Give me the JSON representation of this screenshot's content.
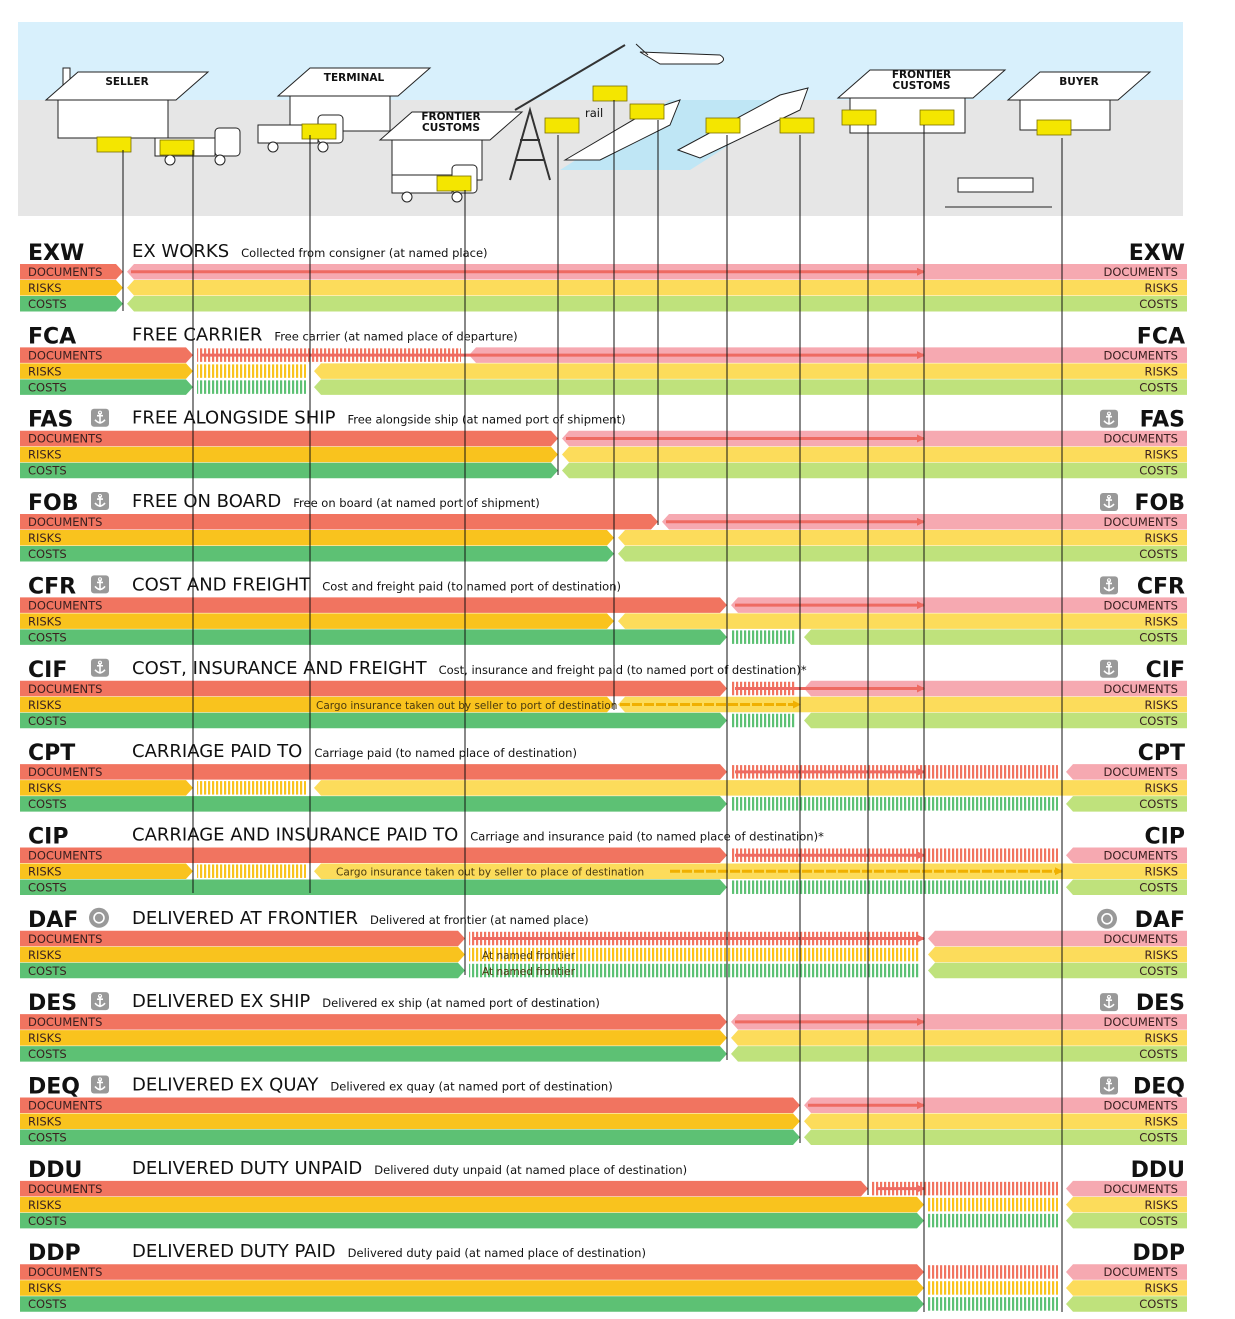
{
  "colors": {
    "sky": "#d8f0fc",
    "ground": "#e6e6e6",
    "cargo": "#f4e600",
    "seller": {
      "documents": "#f17460",
      "risks": "#f9c31e",
      "costs": "#5dc174"
    },
    "buyer": {
      "documents": "#f6a9b1",
      "risks": "#fcdc5b",
      "costs": "#bfe27c"
    },
    "docs_arrow": "#ee6a62",
    "insurance_arrow": "#f0b000"
  },
  "illustration": {
    "seller": "SELLER",
    "terminal": "TERMINAL",
    "frontier_customs_1": "FRONTIER",
    "frontier_customs_2": "CUSTOMS",
    "dest_customs_1": "FRONTIER",
    "dest_customs_2": "CUSTOMS",
    "buyer": "BUYER",
    "rail": "rail"
  },
  "lane_labels": {
    "documents": "DOCUMENTS",
    "risks": "RISKS",
    "costs": "COSTS"
  },
  "rows": [
    {
      "code": "EXW",
      "name": "EX WORKS",
      "desc": "Collected from consigner (at named place)",
      "icon": null,
      "documents": {
        "s": "seller",
        "arrow": "dest_customs"
      },
      "risks": {
        "s": "seller"
      },
      "costs": {
        "s": "seller"
      }
    },
    {
      "code": "FCA",
      "name": "FREE CARRIER",
      "desc": "Free carrier (at named place of departure)",
      "icon": null,
      "documents": {
        "s": "carrier",
        "h": "frontier",
        "arrow": "dest_customs"
      },
      "risks": {
        "s": "carrier",
        "h": "terminal"
      },
      "costs": {
        "s": "carrier",
        "h": "terminal"
      }
    },
    {
      "code": "FAS",
      "name": "FREE ALONGSIDE SHIP",
      "desc": "Free alongside ship (at named port of shipment)",
      "icon": "anchor-icon",
      "documents": {
        "s": "ship_side",
        "arrow": "dest_customs"
      },
      "risks": {
        "s": "ship_side"
      },
      "costs": {
        "s": "ship_side"
      }
    },
    {
      "code": "FOB",
      "name": "FREE ON BOARD",
      "desc": "Free on board (at named port of shipment)",
      "icon": "anchor-icon",
      "documents": {
        "s": "on_board",
        "arrow": "dest_customs"
      },
      "risks": {
        "s": "rail"
      },
      "costs": {
        "s": "rail"
      }
    },
    {
      "code": "CFR",
      "name": "COST AND FREIGHT",
      "desc": "Cost and freight paid (to named port of destination)",
      "icon": "anchor-icon",
      "documents": {
        "s": "dest_port",
        "arrow": "dest_customs"
      },
      "risks": {
        "s": "rail"
      },
      "costs": {
        "s": "dest_port",
        "h": "quay"
      }
    },
    {
      "code": "CIF",
      "name": "COST, INSURANCE AND FREIGHT",
      "desc": "Cost, insurance and freight paid (to named port of destination)*",
      "icon": "anchor-icon",
      "documents": {
        "s": "dest_port",
        "h": "quay",
        "arrow": "dest_customs"
      },
      "risks": {
        "s": "rail",
        "insurance": {
          "to": "quay",
          "text": "Cargo insurance taken out by seller to port of destination"
        }
      },
      "costs": {
        "s": "dest_port",
        "h": "quay"
      }
    },
    {
      "code": "CPT",
      "name": "CARRIAGE PAID TO",
      "desc": "Carriage paid  (to named place of destination)",
      "icon": null,
      "documents": {
        "s": "dest_port",
        "h": "buyer",
        "arrow": "dest_customs"
      },
      "risks": {
        "s": "carrier",
        "h": "terminal"
      },
      "costs": {
        "s": "dest_port",
        "h": "buyer"
      }
    },
    {
      "code": "CIP",
      "name": "CARRIAGE AND INSURANCE PAID TO",
      "desc": "Carriage and insurance paid (to named place of destination)*",
      "icon": null,
      "documents": {
        "s": "dest_port",
        "h": "buyer",
        "arrow": "dest_customs"
      },
      "risks": {
        "s": "carrier",
        "h": "terminal",
        "insurance": {
          "to": "buyer",
          "text": "Cargo insurance taken out by seller to place of destination"
        }
      },
      "costs": {
        "s": "dest_port",
        "h": "buyer"
      }
    },
    {
      "code": "DAF",
      "name": "DELIVERED AT FRONTIER",
      "desc": "Delivered at frontier (at named place)",
      "icon": "customs-badge-icon",
      "documents": {
        "s": "frontier",
        "h": "dest_customs",
        "arrow": "dest_customs"
      },
      "risks": {
        "s": "frontier",
        "h": "dest_customs",
        "note": "At named frontier"
      },
      "costs": {
        "s": "frontier",
        "h": "dest_customs",
        "note": "At named frontier"
      }
    },
    {
      "code": "DES",
      "name": "DELIVERED EX SHIP",
      "desc": "Delivered ex ship (at named port of destination)",
      "icon": "anchor-icon",
      "documents": {
        "s": "dest_port",
        "arrow": "dest_customs"
      },
      "risks": {
        "s": "dest_port"
      },
      "costs": {
        "s": "dest_port"
      }
    },
    {
      "code": "DEQ",
      "name": "DELIVERED EX QUAY",
      "desc": "Delivered ex quay (at named port of destination)",
      "icon": "anchor-icon",
      "documents": {
        "s": "quay",
        "arrow": "dest_customs"
      },
      "risks": {
        "s": "quay"
      },
      "costs": {
        "s": "quay"
      }
    },
    {
      "code": "DDU",
      "name": "DELIVERED DUTY UNPAID",
      "desc": "Delivered duty unpaid (at named place of destination)",
      "icon": null,
      "documents": {
        "s": "dest_frontier",
        "h": "buyer",
        "arrow": "dest_customs"
      },
      "risks": {
        "s": "dest_customs",
        "h": "buyer"
      },
      "costs": {
        "s": "dest_customs",
        "h": "buyer"
      }
    },
    {
      "code": "DDP",
      "name": "DELIVERED DUTY PAID",
      "desc": "Delivered duty paid (at named place of destination)",
      "icon": null,
      "documents": {
        "s": "dest_customs",
        "h": "buyer"
      },
      "risks": {
        "s": "dest_customs",
        "h": "buyer"
      },
      "costs": {
        "s": "dest_customs",
        "h": "buyer"
      }
    }
  ]
}
